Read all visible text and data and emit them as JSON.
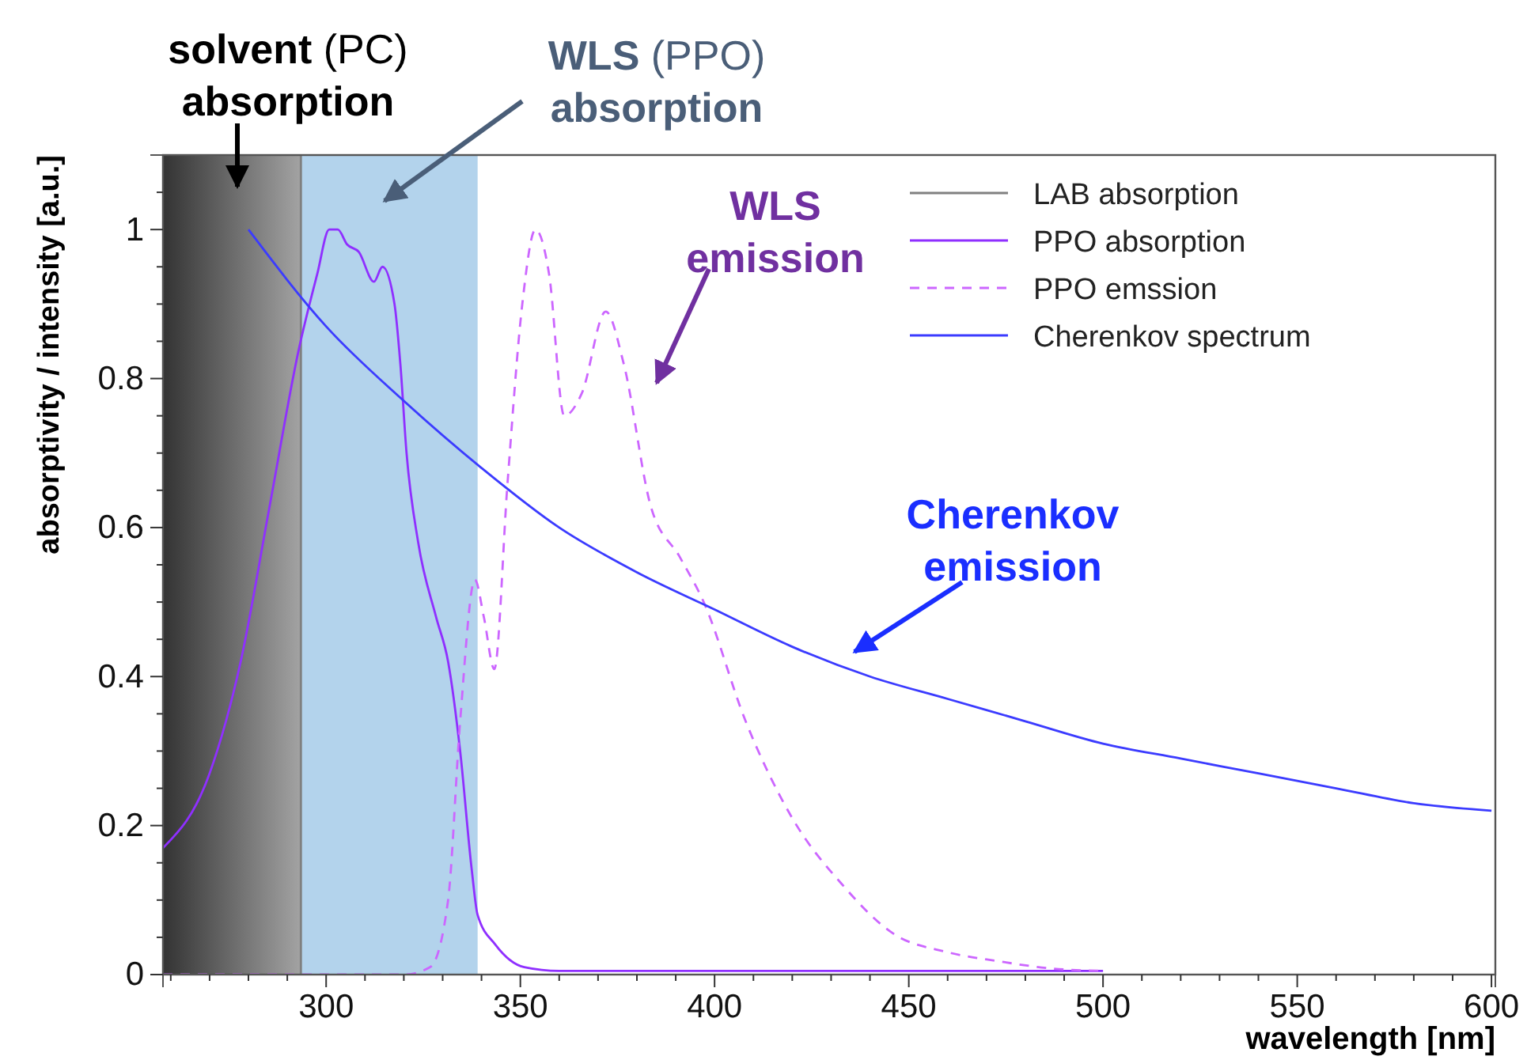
{
  "chart_data": {
    "type": "line",
    "xlabel": "wavelength [nm]",
    "ylabel": "absorptivity / intensity [a.u.]",
    "xlim": [
      258,
      601
    ],
    "ylim": [
      0,
      1.1
    ],
    "xticks": [
      {
        "value": 260,
        "label": null
      },
      {
        "value": 270,
        "label": null
      },
      {
        "value": 280,
        "label": null
      },
      {
        "value": 290,
        "label": null
      },
      300,
      {
        "value": 310,
        "label": null
      },
      {
        "value": 320,
        "label": null
      },
      {
        "value": 330,
        "label": null
      },
      {
        "value": 340,
        "label": null
      },
      350,
      {
        "value": 360,
        "label": null
      },
      {
        "value": 370,
        "label": null
      },
      {
        "value": 380,
        "label": null
      },
      {
        "value": 390,
        "label": null
      },
      400,
      {
        "value": 410,
        "label": null
      },
      {
        "value": 420,
        "label": null
      },
      {
        "value": 430,
        "label": null
      },
      {
        "value": 440,
        "label": null
      },
      450,
      {
        "value": 460,
        "label": null
      },
      {
        "value": 470,
        "label": null
      },
      {
        "value": 480,
        "label": null
      },
      {
        "value": 490,
        "label": null
      },
      500,
      {
        "value": 510,
        "label": null
      },
      {
        "value": 520,
        "label": null
      },
      {
        "value": 530,
        "label": null
      },
      {
        "value": 540,
        "label": null
      },
      550,
      {
        "value": 560,
        "label": null
      },
      {
        "value": 570,
        "label": null
      },
      {
        "value": 580,
        "label": null
      },
      {
        "value": 590,
        "label": null
      },
      600
    ],
    "yticks": [
      0,
      {
        "value": 0.05,
        "label": null
      },
      {
        "value": 0.1,
        "label": null
      },
      {
        "value": 0.15,
        "label": null
      },
      0.2,
      {
        "value": 0.25,
        "label": null
      },
      {
        "value": 0.3,
        "label": null
      },
      {
        "value": 0.35,
        "label": null
      },
      0.4,
      {
        "value": 0.45,
        "label": null
      },
      {
        "value": 0.5,
        "label": null
      },
      {
        "value": 0.55,
        "label": null
      },
      0.6,
      {
        "value": 0.65,
        "label": null
      },
      {
        "value": 0.7,
        "label": null
      },
      {
        "value": 0.75,
        "label": null
      },
      0.8,
      {
        "value": 0.85,
        "label": null
      },
      {
        "value": 0.9,
        "label": null
      },
      {
        "value": 0.95,
        "label": null
      },
      1,
      {
        "value": 1.05,
        "label": null
      }
    ],
    "grid": false,
    "legend": "top right",
    "marker": "none",
    "bands": [
      {
        "axis": "x",
        "from": 258,
        "to": 293.5,
        "color": "#333333"
      },
      {
        "axis": "x",
        "from": 293.5,
        "to": 339,
        "color": "#b3d3ec"
      }
    ],
    "series": [
      {
        "name": "LAB absorption",
        "color": "#808080",
        "x": [
          293.5,
          293.5
        ],
        "values": [
          0,
          1.1
        ]
      },
      {
        "name": "PPO absorption",
        "color": "#8f2fff",
        "x": [
          258,
          270,
          278,
          285.5,
          293,
          297.7,
          300.8,
          303,
          305.4,
          308.4,
          312.3,
          314.5,
          317.6,
          319.1,
          320.7,
          323.7,
          328.3,
          331.4,
          334.5,
          337.5,
          339,
          343.6,
          351,
          360,
          400,
          450,
          500
        ],
        "values": [
          0.17,
          0.27,
          0.42,
          0.63,
          0.84,
          0.94,
          1.0,
          1.0,
          0.98,
          0.97,
          0.93,
          0.95,
          0.9,
          0.82,
          0.7,
          0.58,
          0.48,
          0.42,
          0.3,
          0.14,
          0.08,
          0.04,
          0.01,
          0.005,
          0.005,
          0.005,
          0.005
        ]
      },
      {
        "name": "PPO emssion",
        "color": "#cc66ff",
        "line_style": "dashed",
        "x": [
          258,
          300,
          320,
          326.8,
          331.4,
          334.5,
          338.3,
          340.6,
          343.3,
          346.7,
          350.5,
          353.9,
          357.4,
          361.3,
          365.8,
          372,
          376.6,
          383.5,
          391.1,
          397.2,
          408,
          420,
          433,
          446,
          460,
          473,
          487,
          500
        ],
        "values": [
          0,
          0,
          0,
          0.01,
          0.1,
          0.34,
          0.53,
          0.48,
          0.41,
          0.66,
          0.9,
          1.0,
          0.94,
          0.75,
          0.78,
          0.89,
          0.82,
          0.63,
          0.56,
          0.5,
          0.34,
          0.21,
          0.12,
          0.055,
          0.03,
          0.018,
          0.008,
          0.005
        ]
      },
      {
        "name": "Cherenkov spectrum",
        "color": "#3b3bff",
        "x": [
          280,
          300,
          320,
          340,
          360,
          380,
          400,
          420,
          440,
          460,
          480,
          500,
          520,
          540,
          560,
          580,
          600
        ],
        "values": [
          1.0,
          0.87,
          0.77,
          0.68,
          0.6,
          0.54,
          0.49,
          0.44,
          0.4,
          0.37,
          0.34,
          0.31,
          0.29,
          0.27,
          0.25,
          0.23,
          0.22
        ]
      }
    ],
    "annotations": [
      "solvent (PC) absorption",
      "WLS (PPO) absorption",
      "WLS emission",
      "Cherenkov emission"
    ]
  }
}
